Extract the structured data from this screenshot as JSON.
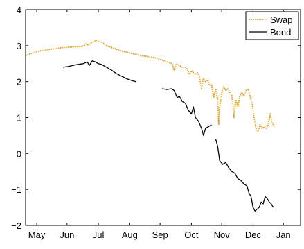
{
  "colors": {
    "background": "#ffffff",
    "axis": "#000000",
    "swap": "#e8a020",
    "bond": "#000000"
  },
  "chart_data": {
    "type": "line",
    "title": "",
    "xlabel": "",
    "ylabel": "",
    "grid": false,
    "legend_placement": "top-right",
    "xlim": [
      0,
      272
    ],
    "ylim": [
      -2,
      4
    ],
    "x_ticks": [
      {
        "label": "May",
        "x": 11
      },
      {
        "label": "Jun",
        "x": 41
      },
      {
        "label": "Jul",
        "x": 72
      },
      {
        "label": "Aug",
        "x": 103
      },
      {
        "label": "Sep",
        "x": 133
      },
      {
        "label": "Oct",
        "x": 164
      },
      {
        "label": "Nov",
        "x": 194
      },
      {
        "label": "Dec",
        "x": 225
      },
      {
        "label": "Jan",
        "x": 255
      }
    ],
    "y_ticks": [
      -2,
      -1,
      0,
      1,
      2,
      3,
      4
    ],
    "series": [
      {
        "name": "Swap",
        "color": "#e8a020",
        "style": "dotted",
        "points": [
          [
            0,
            2.72
          ],
          [
            5,
            2.78
          ],
          [
            10,
            2.82
          ],
          [
            15,
            2.86
          ],
          [
            20,
            2.88
          ],
          [
            25,
            2.9
          ],
          [
            30,
            2.92
          ],
          [
            35,
            2.94
          ],
          [
            40,
            2.95
          ],
          [
            45,
            2.96
          ],
          [
            50,
            2.97
          ],
          [
            55,
            2.98
          ],
          [
            58,
            3.0
          ],
          [
            60,
            3.05
          ],
          [
            62,
            3.0
          ],
          [
            65,
            3.08
          ],
          [
            68,
            3.12
          ],
          [
            70,
            3.15
          ],
          [
            72,
            3.12
          ],
          [
            75,
            3.1
          ],
          [
            78,
            3.05
          ],
          [
            80,
            3.0
          ],
          [
            85,
            2.95
          ],
          [
            90,
            2.9
          ],
          [
            95,
            2.85
          ],
          [
            100,
            2.82
          ],
          [
            105,
            2.78
          ],
          [
            110,
            2.75
          ],
          [
            115,
            2.72
          ],
          [
            120,
            2.7
          ],
          [
            125,
            2.68
          ],
          [
            130,
            2.65
          ],
          [
            135,
            2.6
          ],
          [
            140,
            2.55
          ],
          [
            145,
            2.5
          ],
          [
            147,
            2.3
          ],
          [
            149,
            2.5
          ],
          [
            152,
            2.45
          ],
          [
            155,
            2.4
          ],
          [
            158,
            2.4
          ],
          [
            160,
            2.35
          ],
          [
            162,
            2.2
          ],
          [
            164,
            2.3
          ],
          [
            166,
            2.25
          ],
          [
            168,
            2.2
          ],
          [
            170,
            2.25
          ],
          [
            172,
            2.15
          ],
          [
            174,
            1.8
          ],
          [
            176,
            2.1
          ],
          [
            178,
            2.0
          ],
          [
            180,
            2.05
          ],
          [
            182,
            1.9
          ],
          [
            184,
            1.9
          ],
          [
            186,
            1.55
          ],
          [
            188,
            1.8
          ],
          [
            190,
            1.5
          ],
          [
            191,
            0.8
          ],
          [
            192,
            1.3
          ],
          [
            194,
            1.7
          ],
          [
            196,
            1.85
          ],
          [
            198,
            1.75
          ],
          [
            200,
            1.8
          ],
          [
            202,
            1.7
          ],
          [
            204,
            1.6
          ],
          [
            205,
            1.4
          ],
          [
            206,
            1.0
          ],
          [
            208,
            1.5
          ],
          [
            210,
            1.3
          ],
          [
            212,
            1.6
          ],
          [
            214,
            1.7
          ],
          [
            216,
            1.6
          ],
          [
            218,
            1.75
          ],
          [
            220,
            1.8
          ],
          [
            222,
            1.6
          ],
          [
            224,
            1.4
          ],
          [
            226,
            1.0
          ],
          [
            228,
            0.7
          ],
          [
            230,
            0.6
          ],
          [
            232,
            0.8
          ],
          [
            234,
            0.7
          ],
          [
            236,
            0.75
          ],
          [
            238,
            0.7
          ],
          [
            240,
            0.8
          ],
          [
            242,
            1.1
          ],
          [
            244,
            0.85
          ],
          [
            246,
            0.75
          ]
        ]
      },
      {
        "name": "Bond",
        "color": "#000000",
        "style": "solid",
        "segments": [
          [
            [
              37,
              2.4
            ],
            [
              42,
              2.42
            ],
            [
              47,
              2.45
            ],
            [
              52,
              2.48
            ],
            [
              57,
              2.5
            ],
            [
              61,
              2.55
            ],
            [
              63,
              2.45
            ],
            [
              66,
              2.58
            ],
            [
              69,
              2.55
            ],
            [
              72,
              2.5
            ],
            [
              75,
              2.48
            ],
            [
              80,
              2.4
            ],
            [
              85,
              2.32
            ],
            [
              90,
              2.22
            ],
            [
              95,
              2.15
            ],
            [
              100,
              2.08
            ],
            [
              105,
              2.03
            ],
            [
              109,
              2.0
            ]
          ],
          [
            [
              135,
              1.8
            ],
            [
              140,
              1.78
            ],
            [
              144,
              1.8
            ],
            [
              147,
              1.75
            ],
            [
              150,
              1.55
            ],
            [
              152,
              1.6
            ],
            [
              155,
              1.45
            ],
            [
              158,
              1.4
            ],
            [
              161,
              1.2
            ],
            [
              164,
              1.1
            ],
            [
              166,
              1.3
            ],
            [
              168,
              1.0
            ],
            [
              171,
              0.9
            ],
            [
              174,
              0.7
            ],
            [
              176,
              0.5
            ],
            [
              178,
              0.7
            ],
            [
              181,
              0.75
            ],
            [
              184,
              0.8
            ]
          ],
          [
            [
              188,
              0.4
            ],
            [
              190,
              0.2
            ],
            [
              192,
              -0.2
            ],
            [
              195,
              -0.3
            ],
            [
              198,
              -0.25
            ],
            [
              201,
              -0.4
            ],
            [
              204,
              -0.5
            ],
            [
              207,
              -0.55
            ],
            [
              210,
              -0.7
            ],
            [
              213,
              -0.75
            ],
            [
              216,
              -0.85
            ],
            [
              219,
              -0.9
            ],
            [
              221,
              -1.1
            ],
            [
              223,
              -1.2
            ],
            [
              225,
              -1.5
            ],
            [
              227,
              -1.6
            ],
            [
              229,
              -1.55
            ],
            [
              231,
              -1.5
            ],
            [
              233,
              -1.35
            ],
            [
              235,
              -1.4
            ],
            [
              237,
              -1.2
            ],
            [
              239,
              -1.25
            ],
            [
              241,
              -1.35
            ],
            [
              243,
              -1.4
            ],
            [
              245,
              -1.5
            ]
          ]
        ]
      }
    ],
    "legend": [
      {
        "label": "Swap",
        "style": "dotted",
        "color": "#e8a020"
      },
      {
        "label": "Bond",
        "style": "solid",
        "color": "#000000"
      }
    ]
  }
}
